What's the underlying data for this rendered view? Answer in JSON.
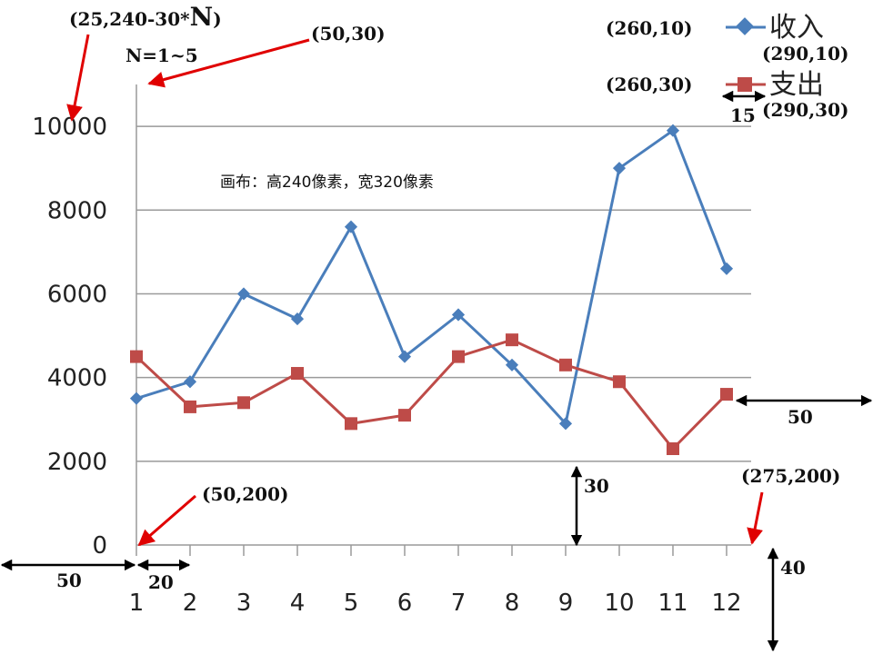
{
  "chart_data": {
    "type": "line",
    "categories": [
      "1",
      "2",
      "3",
      "4",
      "5",
      "6",
      "7",
      "8",
      "9",
      "10",
      "11",
      "12"
    ],
    "series": [
      {
        "name": "收入",
        "color": "#4a7ebb",
        "marker": "diamond",
        "values": [
          3500,
          3900,
          6000,
          5400,
          7600,
          4500,
          5500,
          4300,
          2900,
          9000,
          9900,
          6600
        ]
      },
      {
        "name": "支出",
        "color": "#be4b48",
        "marker": "square",
        "values": [
          4500,
          3300,
          3400,
          4100,
          2900,
          3100,
          4500,
          4900,
          4300,
          3900,
          2300,
          3600
        ]
      }
    ],
    "y_ticks": [
      "0",
      "2000",
      "4000",
      "6000",
      "8000",
      "10000"
    ],
    "ylim": [
      0,
      11000
    ],
    "grid": true,
    "legend": "top-right"
  },
  "annotations": {
    "label_title_pos": "(25,240-30*",
    "label_n_big": "N",
    "label_close": ")",
    "label_n_range": "N=1~5",
    "label_top_left": "(50,30)",
    "label_legend1_left": "(260,10)",
    "label_legend1_right": "(290,10)",
    "label_legend2_left": "(260,30)",
    "label_legend2_right": "(290,30)",
    "label_legend_width": "15",
    "label_canvas": "画布：高240像素，宽320像素",
    "label_right_margin": "50",
    "label_bottom_right": "(275,200)",
    "label_origin": "(50,200)",
    "label_thirty": "30",
    "label_forty": "40",
    "label_left_margin": "50",
    "label_twenty": "20"
  }
}
